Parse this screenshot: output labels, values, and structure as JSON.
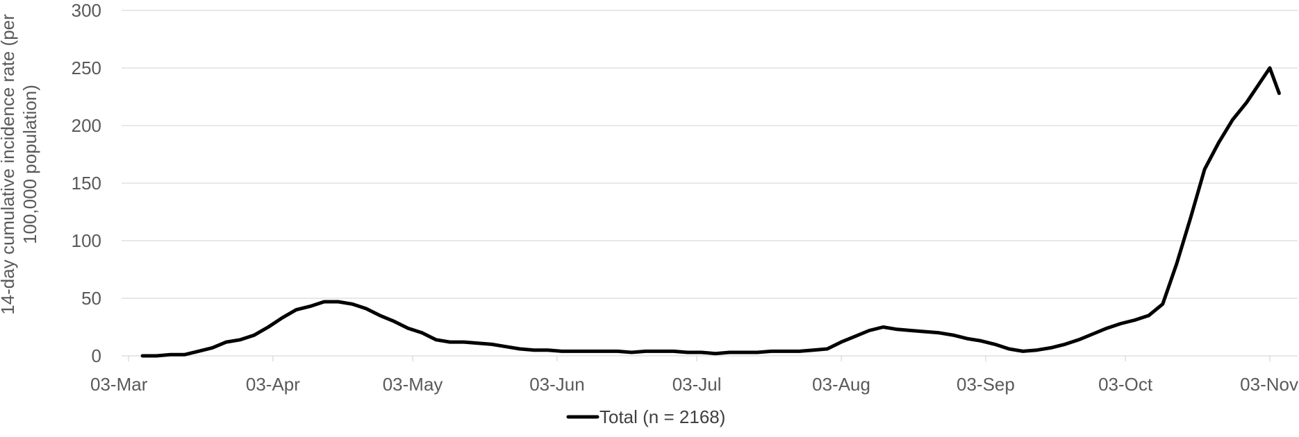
{
  "chart_data": {
    "type": "line",
    "ylabel": "14-day cumulative incidence rate (per 100,000 population)",
    "ylabel_lines": [
      "14-day cumulative incidence rate (per",
      "100,000 population)"
    ],
    "xlabel": "",
    "ylim": [
      0,
      300
    ],
    "yticks": [
      "0",
      "50",
      "100",
      "150",
      "200",
      "250",
      "300"
    ],
    "xlim": [
      "2020-03-03",
      "2020-11-05"
    ],
    "xticks": [
      {
        "date": "2020-03-03",
        "label": "03-Mar"
      },
      {
        "date": "2020-04-03",
        "label": "03-Apr"
      },
      {
        "date": "2020-05-03",
        "label": "03-May"
      },
      {
        "date": "2020-06-03",
        "label": "03-Jun"
      },
      {
        "date": "2020-07-03",
        "label": "03-Jul"
      },
      {
        "date": "2020-08-03",
        "label": "03-Aug"
      },
      {
        "date": "2020-09-03",
        "label": "03-Sep"
      },
      {
        "date": "2020-10-03",
        "label": "03-Oct"
      },
      {
        "date": "2020-11-03",
        "label": "03-Nov"
      }
    ],
    "grid": true,
    "legend_position": "bottom",
    "series": [
      {
        "name": "Total (n = 2168)",
        "color": "#000000",
        "points": [
          [
            "2020-03-06",
            0
          ],
          [
            "2020-03-09",
            0
          ],
          [
            "2020-03-12",
            1
          ],
          [
            "2020-03-15",
            1
          ],
          [
            "2020-03-18",
            4
          ],
          [
            "2020-03-21",
            7
          ],
          [
            "2020-03-24",
            12
          ],
          [
            "2020-03-27",
            14
          ],
          [
            "2020-03-30",
            18
          ],
          [
            "2020-04-02",
            25
          ],
          [
            "2020-04-05",
            33
          ],
          [
            "2020-04-08",
            40
          ],
          [
            "2020-04-11",
            43
          ],
          [
            "2020-04-14",
            47
          ],
          [
            "2020-04-17",
            47
          ],
          [
            "2020-04-20",
            45
          ],
          [
            "2020-04-23",
            41
          ],
          [
            "2020-04-26",
            35
          ],
          [
            "2020-04-29",
            30
          ],
          [
            "2020-05-02",
            24
          ],
          [
            "2020-05-05",
            20
          ],
          [
            "2020-05-08",
            14
          ],
          [
            "2020-05-11",
            12
          ],
          [
            "2020-05-14",
            12
          ],
          [
            "2020-05-17",
            11
          ],
          [
            "2020-05-20",
            10
          ],
          [
            "2020-05-23",
            8
          ],
          [
            "2020-05-26",
            6
          ],
          [
            "2020-05-29",
            5
          ],
          [
            "2020-06-01",
            5
          ],
          [
            "2020-06-04",
            4
          ],
          [
            "2020-06-07",
            4
          ],
          [
            "2020-06-10",
            4
          ],
          [
            "2020-06-13",
            4
          ],
          [
            "2020-06-16",
            4
          ],
          [
            "2020-06-19",
            3
          ],
          [
            "2020-06-22",
            4
          ],
          [
            "2020-06-25",
            4
          ],
          [
            "2020-06-28",
            4
          ],
          [
            "2020-07-01",
            3
          ],
          [
            "2020-07-04",
            3
          ],
          [
            "2020-07-07",
            2
          ],
          [
            "2020-07-10",
            3
          ],
          [
            "2020-07-13",
            3
          ],
          [
            "2020-07-16",
            3
          ],
          [
            "2020-07-19",
            4
          ],
          [
            "2020-07-22",
            4
          ],
          [
            "2020-07-25",
            4
          ],
          [
            "2020-07-28",
            5
          ],
          [
            "2020-07-31",
            6
          ],
          [
            "2020-08-03",
            12
          ],
          [
            "2020-08-06",
            17
          ],
          [
            "2020-08-09",
            22
          ],
          [
            "2020-08-12",
            25
          ],
          [
            "2020-08-15",
            23
          ],
          [
            "2020-08-18",
            22
          ],
          [
            "2020-08-21",
            21
          ],
          [
            "2020-08-24",
            20
          ],
          [
            "2020-08-27",
            18
          ],
          [
            "2020-08-30",
            15
          ],
          [
            "2020-09-02",
            13
          ],
          [
            "2020-09-05",
            10
          ],
          [
            "2020-09-08",
            6
          ],
          [
            "2020-09-11",
            4
          ],
          [
            "2020-09-14",
            5
          ],
          [
            "2020-09-17",
            7
          ],
          [
            "2020-09-20",
            10
          ],
          [
            "2020-09-23",
            14
          ],
          [
            "2020-09-26",
            19
          ],
          [
            "2020-09-29",
            24
          ],
          [
            "2020-10-02",
            28
          ],
          [
            "2020-10-05",
            31
          ],
          [
            "2020-10-08",
            35
          ],
          [
            "2020-10-11",
            45
          ],
          [
            "2020-10-14",
            80
          ],
          [
            "2020-10-17",
            120
          ],
          [
            "2020-10-20",
            162
          ],
          [
            "2020-10-23",
            185
          ],
          [
            "2020-10-26",
            205
          ],
          [
            "2020-10-29",
            220
          ],
          [
            "2020-11-01",
            238
          ],
          [
            "2020-11-03",
            250
          ],
          [
            "2020-11-05",
            228
          ]
        ]
      }
    ]
  }
}
